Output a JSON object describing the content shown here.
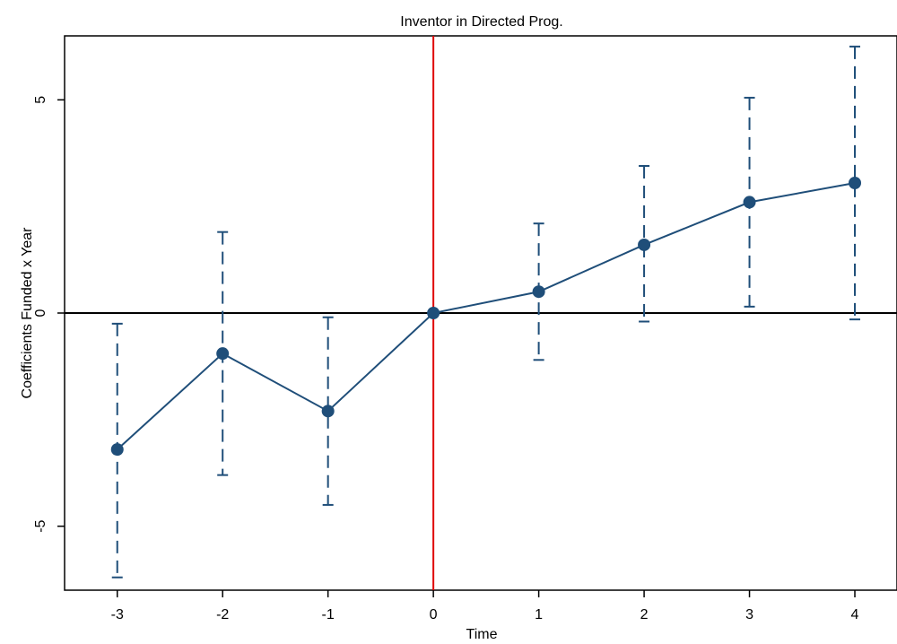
{
  "chart_data": {
    "type": "line",
    "title": "Inventor in Directed Prog.",
    "xlabel": "Time",
    "ylabel": "Coefficients Funded x Year",
    "x": [
      -3,
      -2,
      -1,
      0,
      1,
      2,
      3,
      4
    ],
    "series": [
      {
        "values": [
          -3.2,
          -0.95,
          -2.3,
          0.0,
          0.5,
          1.6,
          2.6,
          3.05
        ],
        "ci_lower": [
          -6.2,
          -3.8,
          -4.5,
          0.0,
          -1.1,
          -0.2,
          0.15,
          -0.15
        ],
        "ci_upper": [
          -0.25,
          1.9,
          -0.1,
          0.0,
          2.1,
          3.45,
          5.05,
          6.25
        ],
        "color": "#1f4e79"
      }
    ],
    "xticks": [
      "-3",
      "-2",
      "-1",
      "0",
      "1",
      "2",
      "3",
      "4"
    ],
    "yticks": [
      "-5",
      "0",
      "5"
    ],
    "xlim": [
      -3.5,
      4.4
    ],
    "ylim": [
      -6.5,
      6.5
    ],
    "reference_lines": {
      "horizontal_y": 0,
      "horizontal_color": "#000000",
      "vertical_x": 0,
      "vertical_color": "#e00000"
    },
    "grid": false,
    "legend": "none"
  }
}
